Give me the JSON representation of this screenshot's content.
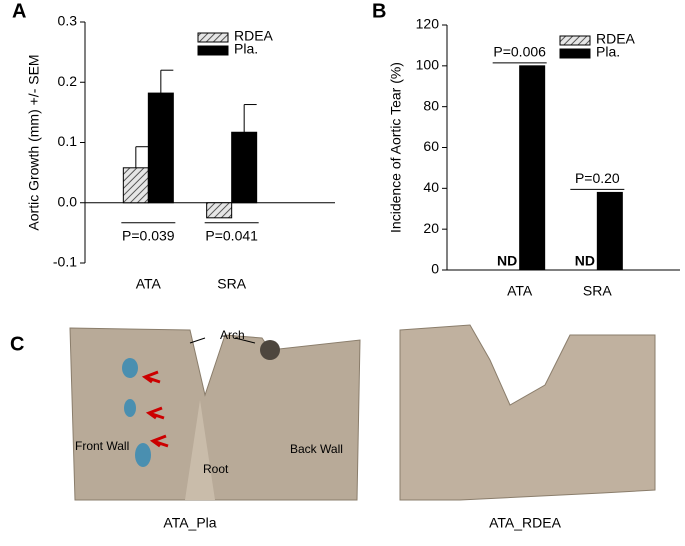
{
  "chart_data": [
    {
      "type": "bar",
      "panel": "A",
      "y_label": "Aortic Growth (mm) +/- SEM",
      "categories": [
        "ATA",
        "SRA"
      ],
      "series": [
        {
          "name": "RDEA",
          "color": "#bbbbbb",
          "hatch": true,
          "values": [
            0.058,
            -0.025
          ],
          "errors": [
            0.035,
            null
          ]
        },
        {
          "name": "Pla.",
          "color": "#000000",
          "hatch": false,
          "values": [
            0.182,
            0.117
          ],
          "errors": [
            0.038,
            0.046
          ]
        }
      ],
      "ylim": [
        -0.1,
        0.3
      ],
      "yticks": [
        -0.1,
        {
          "value": 0,
          "label": "0.0"
        },
        0.1,
        0.2,
        0.3
      ],
      "annotations": [
        "P=0.039",
        "P=0.041"
      ],
      "annotation_position": "below"
    },
    {
      "type": "bar",
      "panel": "B",
      "y_label": "Incidence of  Aortic Tear (%)",
      "categories": [
        "ATA",
        "SRA"
      ],
      "series": [
        {
          "name": "RDEA",
          "color": "#bbbbbb",
          "hatch": true,
          "values": [
            null,
            null
          ],
          "value_labels": [
            "ND",
            "ND"
          ]
        },
        {
          "name": "Pla.",
          "color": "#000000",
          "hatch": false,
          "values": [
            100,
            38
          ]
        }
      ],
      "ylim": [
        0,
        120
      ],
      "yticks": [
        0,
        20,
        40,
        60,
        80,
        100,
        120
      ],
      "annotations": [
        "P=0.006",
        "P=0.20"
      ],
      "annotation_position": "above"
    }
  ],
  "photos": {
    "panel": "C",
    "left": {
      "caption": "ATA_Pla",
      "labels": [
        "Arch",
        "Front Wall",
        "Back Wall",
        "Root"
      ]
    },
    "right": {
      "caption": "ATA_RDEA"
    }
  }
}
